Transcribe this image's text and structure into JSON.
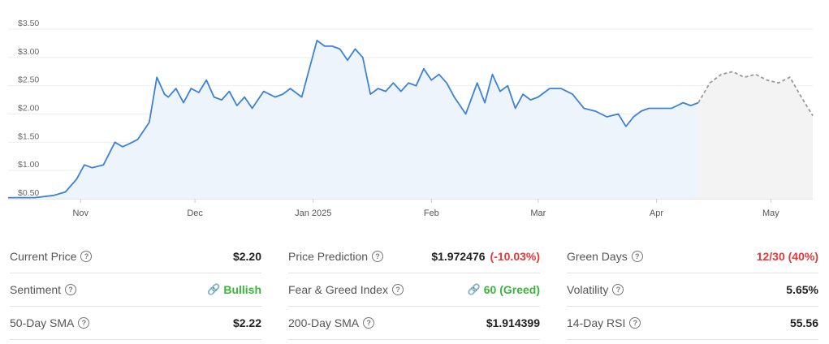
{
  "chart_data": {
    "type": "area",
    "x_tick_labels": [
      "Nov",
      "Dec",
      "Jan 2025",
      "Feb",
      "Mar",
      "Apr",
      "May"
    ],
    "y_tick_labels": [
      "$0.50",
      "$1.00",
      "$1.50",
      "$2.00",
      "$2.50",
      "$3.00",
      "$3.50"
    ],
    "y_ticks": [
      0.5,
      1.0,
      1.5,
      2.0,
      2.5,
      3.0,
      3.5
    ],
    "ylim": [
      0.5,
      3.5
    ],
    "grid": true,
    "history": {
      "x": [
        "2024-10-13",
        "2024-10-20",
        "2024-10-25",
        "2024-10-28",
        "2024-10-31",
        "2024-11-02",
        "2024-11-04",
        "2024-11-07",
        "2024-11-10",
        "2024-11-12",
        "2024-11-14",
        "2024-11-16",
        "2024-11-19",
        "2024-11-21",
        "2024-11-23",
        "2024-11-24",
        "2024-11-26",
        "2024-11-28",
        "2024-11-30",
        "2024-12-02",
        "2024-12-04",
        "2024-12-06",
        "2024-12-08",
        "2024-12-10",
        "2024-12-12",
        "2024-12-14",
        "2024-12-16",
        "2024-12-19",
        "2024-12-22",
        "2024-12-24",
        "2024-12-26",
        "2024-12-29",
        "2024-12-31",
        "2025-01-02",
        "2025-01-04",
        "2025-01-06",
        "2025-01-08",
        "2025-01-10",
        "2025-01-12",
        "2025-01-14",
        "2025-01-16",
        "2025-01-18",
        "2025-01-20",
        "2025-01-22",
        "2025-01-24",
        "2025-01-26",
        "2025-01-28",
        "2025-01-30",
        "2025-02-01",
        "2025-02-03",
        "2025-02-05",
        "2025-02-07",
        "2025-02-10",
        "2025-02-13",
        "2025-02-15",
        "2025-02-17",
        "2025-02-19",
        "2025-02-21",
        "2025-02-23",
        "2025-02-25",
        "2025-02-27",
        "2025-03-01",
        "2025-03-04",
        "2025-03-07",
        "2025-03-10",
        "2025-03-13",
        "2025-03-16",
        "2025-03-19",
        "2025-03-22",
        "2025-03-24",
        "2025-03-26",
        "2025-03-28",
        "2025-03-30",
        "2025-04-02",
        "2025-04-05",
        "2025-04-08",
        "2025-04-10",
        "2025-04-12"
      ],
      "y": [
        0.52,
        0.52,
        0.56,
        0.62,
        0.85,
        1.1,
        1.05,
        1.1,
        1.5,
        1.42,
        1.48,
        1.55,
        1.85,
        2.65,
        2.35,
        2.3,
        2.45,
        2.2,
        2.45,
        2.38,
        2.6,
        2.3,
        2.25,
        2.4,
        2.15,
        2.3,
        2.1,
        2.4,
        2.3,
        2.35,
        2.45,
        2.3,
        2.8,
        3.3,
        3.2,
        3.2,
        3.15,
        2.95,
        3.15,
        3.0,
        2.35,
        2.45,
        2.4,
        2.55,
        2.4,
        2.55,
        2.5,
        2.8,
        2.6,
        2.7,
        2.55,
        2.3,
        2.0,
        2.55,
        2.2,
        2.7,
        2.4,
        2.5,
        2.1,
        2.35,
        2.25,
        2.3,
        2.45,
        2.45,
        2.35,
        2.1,
        2.05,
        1.95,
        2.0,
        1.78,
        1.95,
        2.05,
        2.1,
        2.1,
        2.1,
        2.2,
        2.15,
        2.2
      ]
    },
    "prediction": {
      "x": [
        "2025-04-12",
        "2025-04-15",
        "2025-04-18",
        "2025-04-21",
        "2025-04-24",
        "2025-04-27",
        "2025-04-30",
        "2025-05-03",
        "2025-05-06",
        "2025-05-09",
        "2025-05-12"
      ],
      "y": [
        2.2,
        2.55,
        2.7,
        2.75,
        2.65,
        2.7,
        2.6,
        2.55,
        2.65,
        2.3,
        1.97
      ]
    }
  },
  "stats": {
    "columns": [
      [
        {
          "label": "Current Price",
          "value": "$2.20"
        },
        {
          "label": "Sentiment",
          "value": "Bullish",
          "value_class": "green",
          "icon": "link-icon"
        },
        {
          "label": "50-Day SMA",
          "value": "$2.22"
        }
      ],
      [
        {
          "label": "Price Prediction",
          "value": "$1.972476",
          "extra": "(-10.03%)"
        },
        {
          "label": "Fear & Greed Index",
          "value": "60 (Greed)",
          "value_class": "green",
          "icon": "link-icon"
        },
        {
          "label": "200-Day SMA",
          "value": "$1.914399"
        }
      ],
      [
        {
          "label": "Green Days",
          "value": "12/30 (40%)",
          "value_class": "red"
        },
        {
          "label": "Volatility",
          "value": "5.65%"
        },
        {
          "label": "14-Day RSI",
          "value": "55.56"
        }
      ]
    ]
  },
  "colors": {
    "line": "#3b82d8",
    "area": "#eef4fc",
    "prediction_line": "#999999",
    "prediction_area": "#f3f3f3",
    "grid": "#eeeeee",
    "red": "#e8373a",
    "green": "#3cb43c"
  }
}
